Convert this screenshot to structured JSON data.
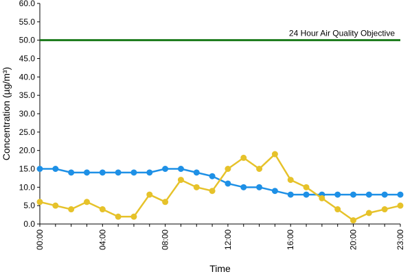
{
  "chart_data": {
    "type": "line",
    "xlabel": "Time",
    "ylabel": "Concentration (µg/m³)",
    "ylim": [
      0,
      60
    ],
    "y_ticks": [
      "0.0",
      "5.0",
      "10.0",
      "15.0",
      "20.0",
      "25.0",
      "30.0",
      "35.0",
      "40.0",
      "45.0",
      "50.0",
      "55.0",
      "60.0"
    ],
    "x": [
      "00:00",
      "01:00",
      "02:00",
      "03:00",
      "04:00",
      "05:00",
      "06:00",
      "07:00",
      "08:00",
      "09:00",
      "10:00",
      "11:00",
      "12:00",
      "13:00",
      "14:00",
      "15:00",
      "16:00",
      "17:00",
      "18:00",
      "19:00",
      "20:00",
      "21:00",
      "22:00",
      "23:00"
    ],
    "x_tick_labels": [
      "00:00",
      "04:00",
      "08:00",
      "12:00",
      "16:00",
      "20:00",
      "23:00"
    ],
    "grid": false,
    "legend": "none",
    "series": [
      {
        "color": "#1e90e6",
        "values": [
          15,
          15,
          14,
          14,
          14,
          14,
          14,
          14,
          15,
          15,
          14,
          13,
          11,
          10,
          10,
          9,
          8,
          8,
          8,
          8,
          8,
          8,
          8,
          8
        ]
      },
      {
        "color": "#e6c22a",
        "values": [
          6,
          5,
          4,
          6,
          4,
          2,
          2,
          8,
          6,
          12,
          10,
          9,
          15,
          18,
          15,
          19,
          12,
          10,
          7,
          4,
          1,
          3,
          4,
          5
        ]
      }
    ],
    "reference_line": {
      "value": 50,
      "label": "24 Hour Air Quality Objective",
      "color": "#1a7a1a"
    }
  }
}
